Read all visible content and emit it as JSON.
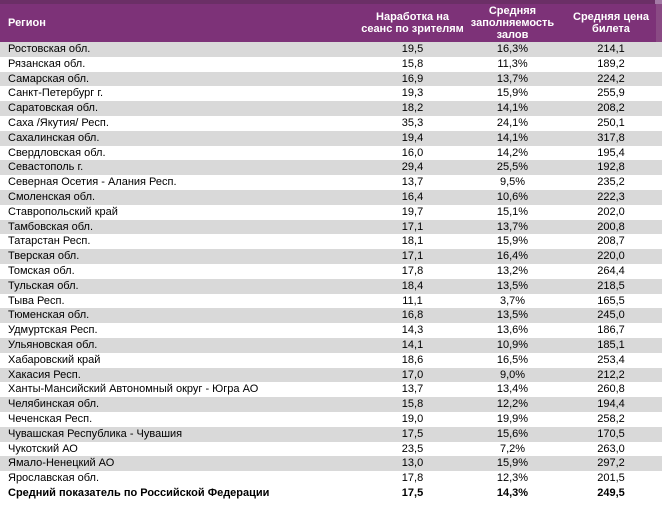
{
  "colors": {
    "header_bg": "#7D3278",
    "header_top_border": "#6B2F66",
    "header_corner": "#A47AA6",
    "header_right_strip": "#8A4A84",
    "stripe": "#D9D9D9",
    "header_text": "#FFFFFF",
    "body_text": "#000000"
  },
  "table": {
    "columns": [
      {
        "key": "region",
        "label": "Регион"
      },
      {
        "key": "per_session",
        "label": "Наработка на\nсеанс по зрителям"
      },
      {
        "key": "occupancy",
        "label": "Средняя\nзаполняемость\nзалов"
      },
      {
        "key": "price",
        "label": "Средняя цена\nбилета"
      }
    ],
    "rows": [
      {
        "region": "Ростовская обл.",
        "per_session": "19,5",
        "occupancy": "16,3%",
        "price": "214,1"
      },
      {
        "region": "Рязанская обл.",
        "per_session": "15,8",
        "occupancy": "11,3%",
        "price": "189,2"
      },
      {
        "region": "Самарская обл.",
        "per_session": "16,9",
        "occupancy": "13,7%",
        "price": "224,2"
      },
      {
        "region": "Санкт-Петербург г.",
        "per_session": "19,3",
        "occupancy": "15,9%",
        "price": "255,9"
      },
      {
        "region": "Саратовская обл.",
        "per_session": "18,2",
        "occupancy": "14,1%",
        "price": "208,2"
      },
      {
        "region": "Саха /Якутия/ Респ.",
        "per_session": "35,3",
        "occupancy": "24,1%",
        "price": "250,1"
      },
      {
        "region": "Сахалинская обл.",
        "per_session": "19,4",
        "occupancy": "14,1%",
        "price": "317,8"
      },
      {
        "region": "Свердловская обл.",
        "per_session": "16,0",
        "occupancy": "14,2%",
        "price": "195,4"
      },
      {
        "region": "Севастополь г.",
        "per_session": "29,4",
        "occupancy": "25,5%",
        "price": "192,8"
      },
      {
        "region": "Северная Осетия - Алания Респ.",
        "per_session": "13,7",
        "occupancy": "9,5%",
        "price": "235,2"
      },
      {
        "region": "Смоленская обл.",
        "per_session": "16,4",
        "occupancy": "10,6%",
        "price": "222,3"
      },
      {
        "region": "Ставропольский край",
        "per_session": "19,7",
        "occupancy": "15,1%",
        "price": "202,0"
      },
      {
        "region": "Тамбовская обл.",
        "per_session": "17,1",
        "occupancy": "13,7%",
        "price": "200,8"
      },
      {
        "region": "Татарстан Респ.",
        "per_session": "18,1",
        "occupancy": "15,9%",
        "price": "208,7"
      },
      {
        "region": "Тверская обл.",
        "per_session": "17,1",
        "occupancy": "16,4%",
        "price": "220,0"
      },
      {
        "region": "Томская обл.",
        "per_session": "17,8",
        "occupancy": "13,2%",
        "price": "264,4"
      },
      {
        "region": "Тульская обл.",
        "per_session": "18,4",
        "occupancy": "13,5%",
        "price": "218,5"
      },
      {
        "region": "Тыва Респ.",
        "per_session": "11,1",
        "occupancy": "3,7%",
        "price": "165,5"
      },
      {
        "region": "Тюменская обл.",
        "per_session": "16,8",
        "occupancy": "13,5%",
        "price": "245,0"
      },
      {
        "region": "Удмуртская Респ.",
        "per_session": "14,3",
        "occupancy": "13,6%",
        "price": "186,7"
      },
      {
        "region": "Ульяновская обл.",
        "per_session": "14,1",
        "occupancy": "10,9%",
        "price": "185,1"
      },
      {
        "region": "Хабаровский край",
        "per_session": "18,6",
        "occupancy": "16,5%",
        "price": "253,4"
      },
      {
        "region": "Хакасия Респ.",
        "per_session": "17,0",
        "occupancy": "9,0%",
        "price": "212,2"
      },
      {
        "region": "Ханты-Мансийский Автономный округ - Югра АО",
        "per_session": "13,7",
        "occupancy": "13,4%",
        "price": "260,8"
      },
      {
        "region": "Челябинская обл.",
        "per_session": "15,8",
        "occupancy": "12,2%",
        "price": "194,4"
      },
      {
        "region": "Чеченская Респ.",
        "per_session": "19,0",
        "occupancy": "19,9%",
        "price": "258,2"
      },
      {
        "region": "Чувашская Республика - Чувашия",
        "per_session": "17,5",
        "occupancy": "15,6%",
        "price": "170,5"
      },
      {
        "region": "Чукотский АО",
        "per_session": "23,5",
        "occupancy": "7,2%",
        "price": "263,0"
      },
      {
        "region": "Ямало-Ненецкий АО",
        "per_session": "13,0",
        "occupancy": "15,9%",
        "price": "297,2"
      },
      {
        "region": "Ярославская обл.",
        "per_session": "17,8",
        "occupancy": "12,3%",
        "price": "201,5"
      }
    ],
    "summary": {
      "region": "Средний показатель по Российской Федерации",
      "per_session": "17,5",
      "occupancy": "14,3%",
      "price": "249,5"
    }
  }
}
